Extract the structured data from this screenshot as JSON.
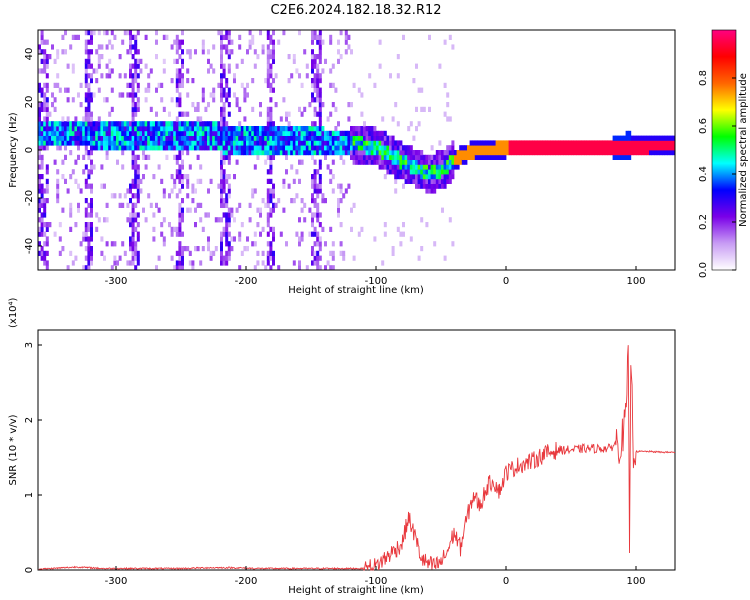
{
  "title": "C2E6.2024.182.18.32.R12",
  "chart_data": [
    {
      "type": "heatmap",
      "xlabel": "Height of straight line (km)",
      "ylabel": "Frequency (Hz)",
      "xlim": [
        -360,
        130
      ],
      "ylim": [
        -50,
        50
      ],
      "x_ticks": [
        -300,
        -200,
        -100,
        0,
        100
      ],
      "y_ticks": [
        -40,
        -20,
        0,
        20,
        40
      ],
      "grid": false,
      "colorbar": {
        "label": "Normalized spectral amplitude",
        "range": [
          0,
          1
        ],
        "ticks": [
          0.0,
          0.2,
          0.4,
          0.6,
          0.8
        ],
        "colormap": [
          "#ffffff",
          "#c89cf4",
          "#7a00e8",
          "#0000ff",
          "#00ffff",
          "#00ff00",
          "#ffff00",
          "#ff6600",
          "#ff0000",
          "#ff0080"
        ]
      },
      "ridge": {
        "x": [
          -355,
          -320,
          -290,
          -260,
          -220,
          -180,
          -140,
          -120,
          -100,
          -80,
          -60,
          -50,
          -40,
          -30,
          -20,
          0,
          50,
          90,
          130
        ],
        "frequency": [
          7,
          7,
          5,
          6,
          5,
          4,
          3,
          3,
          1,
          -5,
          -10,
          -8,
          -4,
          -1,
          0,
          1,
          1,
          1,
          2
        ]
      }
    },
    {
      "type": "line",
      "xlabel": "Height of straight line (km)",
      "ylabel": "SNR (10 * v/v)",
      "y_scale_label": "(x10⁴)",
      "xlim": [
        -360,
        130
      ],
      "ylim": [
        0,
        3.2
      ],
      "x_ticks": [
        -300,
        -200,
        -100,
        0,
        100
      ],
      "y_ticks": [
        0,
        1,
        2,
        3
      ],
      "grid": false,
      "color": "#e8383d",
      "x": [
        -360,
        -330,
        -310,
        -290,
        -270,
        -250,
        -230,
        -210,
        -190,
        -170,
        -150,
        -130,
        -110,
        -100,
        -90,
        -80,
        -75,
        -70,
        -65,
        -60,
        -55,
        -50,
        -45,
        -40,
        -35,
        -30,
        -25,
        -20,
        -15,
        -10,
        -5,
        0,
        10,
        20,
        30,
        40,
        50,
        60,
        70,
        80,
        85,
        88,
        92,
        94,
        95,
        96,
        98,
        100,
        110,
        120,
        130
      ],
      "y": [
        0.01,
        0.04,
        0.02,
        0.02,
        0.02,
        0.02,
        0.03,
        0.03,
        0.02,
        0.02,
        0.02,
        0.02,
        0.02,
        0.05,
        0.2,
        0.35,
        0.7,
        0.45,
        0.15,
        0.08,
        0.05,
        0.1,
        0.25,
        0.5,
        0.3,
        0.7,
        1.0,
        0.85,
        1.1,
        1.2,
        1.05,
        1.3,
        1.4,
        1.45,
        1.55,
        1.6,
        1.6,
        1.62,
        1.62,
        1.62,
        1.7,
        1.65,
        2.0,
        2.8,
        0.1,
        2.9,
        1.6,
        1.58,
        1.58,
        1.57,
        1.57
      ]
    }
  ]
}
